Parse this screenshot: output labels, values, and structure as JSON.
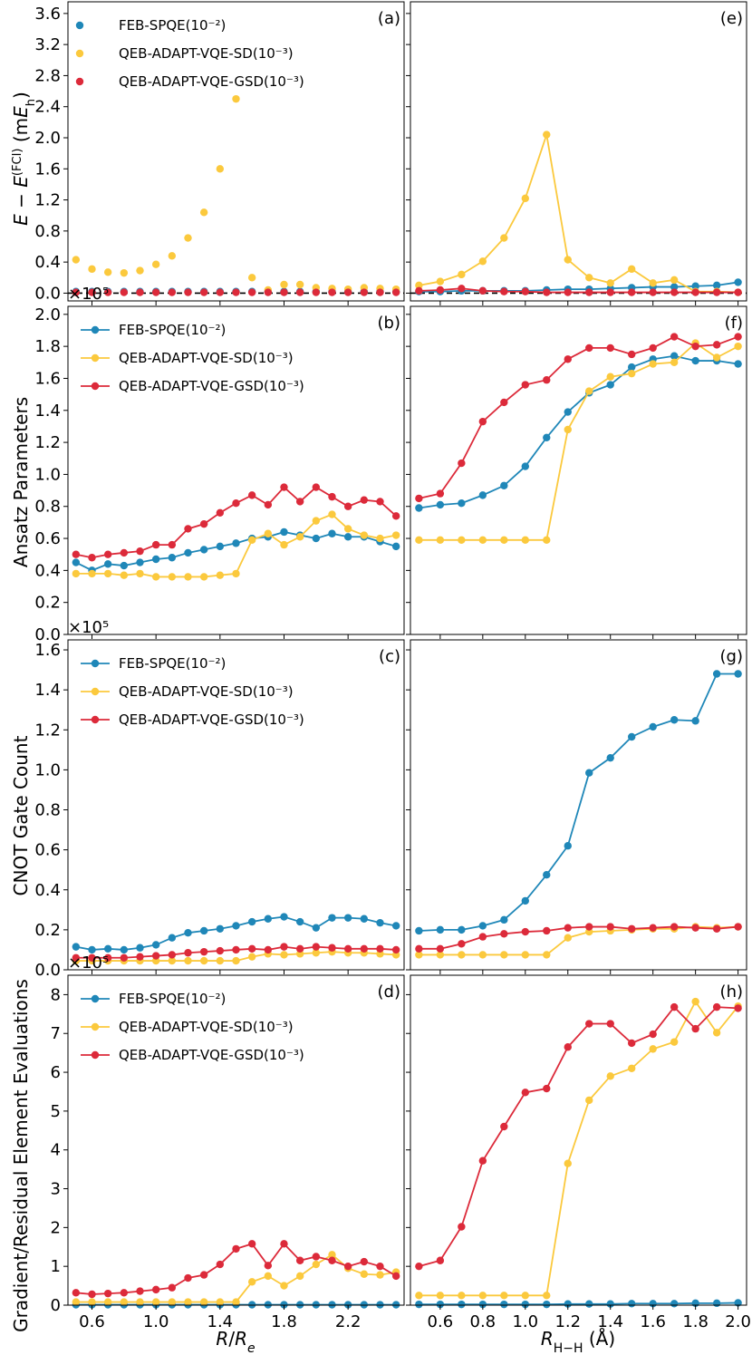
{
  "colors": {
    "blue": "#1f87b8",
    "yellow": "#fbc93d",
    "red": "#dc2a3a",
    "refline": "#000000"
  },
  "axis_labels": {
    "x_left": "R/R_e",
    "x_right": "R_H−H (Å)",
    "y_a": "E − E^(FCI) (mE_h)",
    "y_b": "Ansatz Parameters",
    "y_c": "CNOT Gate Count",
    "y_d": "Gradient/Residual Element Evaluations"
  },
  "chart_data": [
    {
      "id": "a",
      "type": "line",
      "panel_label": "(a)",
      "lines": false,
      "zero_line": true,
      "legend": true,
      "x": [
        0.5,
        0.6,
        0.7,
        0.8,
        0.9,
        1.0,
        1.1,
        1.2,
        1.3,
        1.4,
        1.5,
        1.6,
        1.7,
        1.8,
        1.9,
        2.0,
        2.1,
        2.2,
        2.3,
        2.4,
        2.5
      ],
      "xlim": [
        0.45,
        2.55
      ],
      "ylim": [
        -0.1,
        3.75
      ],
      "yticks": [
        0.0,
        0.4,
        0.8,
        1.2,
        1.6,
        2.0,
        2.4,
        2.8,
        3.2,
        3.6
      ],
      "ytick_labels": [
        "0.0",
        "0.4",
        "0.8",
        "1.2",
        "1.6",
        "2.0",
        "2.4",
        "2.8",
        "3.2",
        "3.6"
      ],
      "xticks": [
        0.6,
        1.0,
        1.4,
        1.8,
        2.2
      ],
      "xtick_labels": [],
      "series": [
        {
          "name": "FEB-SPQE(10⁻²)",
          "color": "#1f87b8",
          "values": [
            0.02,
            0.02,
            0.02,
            0.02,
            0.02,
            0.02,
            0.02,
            0.02,
            0.02,
            0.02,
            0.02,
            0.02,
            0.02,
            0.02,
            0.02,
            0.02,
            0.02,
            0.02,
            0.02,
            0.02,
            0.02
          ]
        },
        {
          "name": "QEB-ADAPT-VQE-SD(10⁻³)",
          "color": "#fbc93d",
          "values": [
            0.43,
            0.31,
            0.27,
            0.26,
            0.29,
            0.37,
            0.48,
            0.71,
            1.04,
            1.6,
            2.5,
            0.2,
            0.04,
            0.11,
            0.11,
            0.07,
            0.06,
            0.05,
            0.07,
            0.06,
            0.05
          ]
        },
        {
          "name": "QEB-ADAPT-VQE-GSD(10⁻³)",
          "color": "#dc2a3a",
          "values": [
            0.01,
            0.01,
            0.01,
            0.01,
            0.01,
            0.01,
            0.01,
            0.01,
            0.01,
            0.01,
            0.01,
            0.01,
            0.01,
            0.01,
            0.01,
            0.01,
            0.01,
            0.01,
            0.01,
            0.01,
            0.01
          ]
        }
      ]
    },
    {
      "id": "e",
      "type": "line",
      "panel_label": "(e)",
      "lines": true,
      "zero_line": true,
      "legend": false,
      "x": [
        0.5,
        0.6,
        0.7,
        0.8,
        0.9,
        1.0,
        1.1,
        1.2,
        1.3,
        1.4,
        1.5,
        1.6,
        1.7,
        1.8,
        1.9,
        2.0
      ],
      "xlim": [
        0.46,
        2.04
      ],
      "ylim": [
        -0.1,
        3.75
      ],
      "yticks": [
        0.0,
        0.4,
        0.8,
        1.2,
        1.6,
        2.0,
        2.4,
        2.8,
        3.2,
        3.6
      ],
      "ytick_labels": [],
      "xticks": [
        0.6,
        0.8,
        1.0,
        1.2,
        1.4,
        1.6,
        1.8,
        2.0
      ],
      "xtick_labels": [],
      "series": [
        {
          "name": "FEB-SPQE(10⁻²)",
          "color": "#1f87b8",
          "values": [
            0.02,
            0.02,
            0.03,
            0.03,
            0.03,
            0.03,
            0.04,
            0.05,
            0.05,
            0.06,
            0.07,
            0.08,
            0.08,
            0.09,
            0.1,
            0.14
          ]
        },
        {
          "name": "QEB-ADAPT-VQE-SD(10⁻³)",
          "color": "#fbc93d",
          "values": [
            0.1,
            0.15,
            0.24,
            0.41,
            0.71,
            1.22,
            2.04,
            0.43,
            0.2,
            0.13,
            0.31,
            0.13,
            0.17,
            0.02,
            0.02,
            0.01
          ]
        },
        {
          "name": "QEB-ADAPT-VQE-GSD(10⁻³)",
          "color": "#dc2a3a",
          "values": [
            0.03,
            0.04,
            0.06,
            0.03,
            0.02,
            0.02,
            0.01,
            0.01,
            0.01,
            0.01,
            0.01,
            0.01,
            0.01,
            0.01,
            0.01,
            0.01
          ]
        }
      ]
    },
    {
      "id": "b",
      "type": "line",
      "panel_label": "(b)",
      "lines": true,
      "zero_line": false,
      "legend": true,
      "multiplier": "×10⁵",
      "x": [
        0.5,
        0.6,
        0.7,
        0.8,
        0.9,
        1.0,
        1.1,
        1.2,
        1.3,
        1.4,
        1.5,
        1.6,
        1.7,
        1.8,
        1.9,
        2.0,
        2.1,
        2.2,
        2.3,
        2.4,
        2.5
      ],
      "xlim": [
        0.45,
        2.55
      ],
      "ylim": [
        0.0,
        2.05
      ],
      "yticks": [
        0.0,
        0.2,
        0.4,
        0.6,
        0.8,
        1.0,
        1.2,
        1.4,
        1.6,
        1.8,
        2.0
      ],
      "ytick_labels": [
        "0.0",
        "0.2",
        "0.4",
        "0.6",
        "0.8",
        "1.0",
        "1.2",
        "1.4",
        "1.6",
        "1.8",
        "2.0"
      ],
      "xticks": [
        0.6,
        1.0,
        1.4,
        1.8,
        2.2
      ],
      "xtick_labels": [],
      "series": [
        {
          "name": "FEB-SPQE(10⁻²)",
          "color": "#1f87b8",
          "values": [
            0.45,
            0.4,
            0.44,
            0.43,
            0.45,
            0.47,
            0.48,
            0.51,
            0.53,
            0.55,
            0.57,
            0.6,
            0.61,
            0.64,
            0.62,
            0.6,
            0.63,
            0.61,
            0.61,
            0.58,
            0.55
          ]
        },
        {
          "name": "QEB-ADAPT-VQE-SD(10⁻³)",
          "color": "#fbc93d",
          "values": [
            0.38,
            0.38,
            0.38,
            0.37,
            0.38,
            0.36,
            0.36,
            0.36,
            0.36,
            0.37,
            0.38,
            0.59,
            0.63,
            0.56,
            0.61,
            0.71,
            0.75,
            0.66,
            0.62,
            0.6,
            0.62
          ]
        },
        {
          "name": "QEB-ADAPT-VQE-GSD(10⁻³)",
          "color": "#dc2a3a",
          "values": [
            0.5,
            0.48,
            0.5,
            0.51,
            0.52,
            0.56,
            0.56,
            0.66,
            0.69,
            0.76,
            0.82,
            0.87,
            0.81,
            0.92,
            0.83,
            0.92,
            0.86,
            0.8,
            0.84,
            0.83,
            0.74
          ]
        }
      ]
    },
    {
      "id": "f",
      "type": "line",
      "panel_label": "(f)",
      "lines": true,
      "zero_line": false,
      "legend": false,
      "x": [
        0.5,
        0.6,
        0.7,
        0.8,
        0.9,
        1.0,
        1.1,
        1.2,
        1.3,
        1.4,
        1.5,
        1.6,
        1.7,
        1.8,
        1.9,
        2.0
      ],
      "xlim": [
        0.46,
        2.04
      ],
      "ylim": [
        0.0,
        2.05
      ],
      "yticks": [
        0.0,
        0.2,
        0.4,
        0.6,
        0.8,
        1.0,
        1.2,
        1.4,
        1.6,
        1.8,
        2.0
      ],
      "ytick_labels": [],
      "xticks": [
        0.6,
        0.8,
        1.0,
        1.2,
        1.4,
        1.6,
        1.8,
        2.0
      ],
      "xtick_labels": [],
      "series": [
        {
          "name": "FEB-SPQE(10⁻²)",
          "color": "#1f87b8",
          "values": [
            0.79,
            0.81,
            0.82,
            0.87,
            0.93,
            1.05,
            1.23,
            1.39,
            1.51,
            1.56,
            1.67,
            1.72,
            1.74,
            1.71,
            1.71,
            1.69
          ]
        },
        {
          "name": "QEB-ADAPT-VQE-SD(10⁻³)",
          "color": "#fbc93d",
          "values": [
            0.59,
            0.59,
            0.59,
            0.59,
            0.59,
            0.59,
            0.59,
            1.28,
            1.52,
            1.61,
            1.63,
            1.69,
            1.7,
            1.82,
            1.73,
            1.8
          ]
        },
        {
          "name": "QEB-ADAPT-VQE-GSD(10⁻³)",
          "color": "#dc2a3a",
          "values": [
            0.85,
            0.88,
            1.07,
            1.33,
            1.45,
            1.56,
            1.59,
            1.72,
            1.79,
            1.79,
            1.75,
            1.79,
            1.86,
            1.8,
            1.81,
            1.86
          ]
        }
      ]
    },
    {
      "id": "c",
      "type": "line",
      "panel_label": "(c)",
      "lines": true,
      "zero_line": false,
      "legend": true,
      "multiplier": "×10⁵",
      "x": [
        0.5,
        0.6,
        0.7,
        0.8,
        0.9,
        1.0,
        1.1,
        1.2,
        1.3,
        1.4,
        1.5,
        1.6,
        1.7,
        1.8,
        1.9,
        2.0,
        2.1,
        2.2,
        2.3,
        2.4,
        2.5
      ],
      "xlim": [
        0.45,
        2.55
      ],
      "ylim": [
        0.0,
        1.65
      ],
      "yticks": [
        0.0,
        0.2,
        0.4,
        0.6,
        0.8,
        1.0,
        1.2,
        1.4,
        1.6
      ],
      "ytick_labels": [
        "0.0",
        "0.2",
        "0.4",
        "0.6",
        "0.8",
        "1.0",
        "1.2",
        "1.4",
        "1.6"
      ],
      "xticks": [
        0.6,
        1.0,
        1.4,
        1.8,
        2.2
      ],
      "xtick_labels": [],
      "series": [
        {
          "name": "FEB-SPQE(10⁻²)",
          "color": "#1f87b8",
          "values": [
            0.115,
            0.1,
            0.105,
            0.1,
            0.11,
            0.125,
            0.16,
            0.185,
            0.195,
            0.205,
            0.22,
            0.24,
            0.255,
            0.265,
            0.24,
            0.21,
            0.26,
            0.26,
            0.255,
            0.235,
            0.22
          ]
        },
        {
          "name": "QEB-ADAPT-VQE-SD(10⁻³)",
          "color": "#fbc93d",
          "values": [
            0.045,
            0.045,
            0.045,
            0.045,
            0.045,
            0.045,
            0.045,
            0.045,
            0.045,
            0.045,
            0.045,
            0.065,
            0.08,
            0.075,
            0.08,
            0.085,
            0.09,
            0.085,
            0.085,
            0.08,
            0.075
          ]
        },
        {
          "name": "QEB-ADAPT-VQE-GSD(10⁻³)",
          "color": "#dc2a3a",
          "values": [
            0.06,
            0.06,
            0.06,
            0.06,
            0.065,
            0.07,
            0.075,
            0.085,
            0.09,
            0.095,
            0.1,
            0.105,
            0.1,
            0.115,
            0.105,
            0.115,
            0.11,
            0.105,
            0.105,
            0.105,
            0.1
          ]
        }
      ]
    },
    {
      "id": "g",
      "type": "line",
      "panel_label": "(g)",
      "lines": true,
      "zero_line": false,
      "legend": false,
      "x": [
        0.5,
        0.6,
        0.7,
        0.8,
        0.9,
        1.0,
        1.1,
        1.2,
        1.3,
        1.4,
        1.5,
        1.6,
        1.7,
        1.8,
        1.9,
        2.0
      ],
      "xlim": [
        0.46,
        2.04
      ],
      "ylim": [
        0.0,
        1.65
      ],
      "yticks": [
        0.0,
        0.2,
        0.4,
        0.6,
        0.8,
        1.0,
        1.2,
        1.4,
        1.6
      ],
      "ytick_labels": [],
      "xticks": [
        0.6,
        0.8,
        1.0,
        1.2,
        1.4,
        1.6,
        1.8,
        2.0
      ],
      "xtick_labels": [],
      "series": [
        {
          "name": "FEB-SPQE(10⁻²)",
          "color": "#1f87b8",
          "values": [
            0.195,
            0.2,
            0.2,
            0.22,
            0.25,
            0.345,
            0.475,
            0.62,
            0.985,
            1.06,
            1.165,
            1.215,
            1.25,
            1.245,
            1.48,
            1.48
          ]
        },
        {
          "name": "QEB-ADAPT-VQE-SD(10⁻³)",
          "color": "#fbc93d",
          "values": [
            0.075,
            0.075,
            0.075,
            0.075,
            0.075,
            0.075,
            0.075,
            0.16,
            0.19,
            0.195,
            0.2,
            0.205,
            0.205,
            0.215,
            0.21,
            0.215
          ]
        },
        {
          "name": "QEB-ADAPT-VQE-GSD(10⁻³)",
          "color": "#dc2a3a",
          "values": [
            0.105,
            0.105,
            0.13,
            0.165,
            0.18,
            0.19,
            0.195,
            0.21,
            0.215,
            0.215,
            0.205,
            0.21,
            0.215,
            0.21,
            0.205,
            0.215
          ]
        }
      ]
    },
    {
      "id": "d",
      "type": "line",
      "panel_label": "(d)",
      "lines": true,
      "zero_line": false,
      "legend": true,
      "multiplier": "×10⁵",
      "x": [
        0.5,
        0.6,
        0.7,
        0.8,
        0.9,
        1.0,
        1.1,
        1.2,
        1.3,
        1.4,
        1.5,
        1.6,
        1.7,
        1.8,
        1.9,
        2.0,
        2.1,
        2.2,
        2.3,
        2.4,
        2.5
      ],
      "xlim": [
        0.45,
        2.55
      ],
      "ylim": [
        0.0,
        8.5
      ],
      "yticks": [
        0,
        1,
        2,
        3,
        4,
        5,
        6,
        7,
        8
      ],
      "ytick_labels": [
        "0",
        "1",
        "2",
        "3",
        "4",
        "5",
        "6",
        "7",
        "8"
      ],
      "xticks": [
        0.6,
        1.0,
        1.4,
        1.8,
        2.2
      ],
      "xtick_labels": [
        "0.6",
        "1.0",
        "1.4",
        "1.8",
        "2.2"
      ],
      "series": [
        {
          "name": "FEB-SPQE(10⁻²)",
          "color": "#1f87b8",
          "values": [
            0.01,
            0.01,
            0.01,
            0.01,
            0.01,
            0.01,
            0.01,
            0.01,
            0.01,
            0.01,
            0.01,
            0.01,
            0.01,
            0.01,
            0.01,
            0.01,
            0.01,
            0.01,
            0.01,
            0.01,
            0.01
          ]
        },
        {
          "name": "QEB-ADAPT-VQE-SD(10⁻³)",
          "color": "#fbc93d",
          "values": [
            0.08,
            0.08,
            0.08,
            0.08,
            0.08,
            0.08,
            0.08,
            0.08,
            0.08,
            0.08,
            0.08,
            0.6,
            0.75,
            0.5,
            0.75,
            1.05,
            1.3,
            0.95,
            0.8,
            0.78,
            0.85
          ]
        },
        {
          "name": "QEB-ADAPT-VQE-GSD(10⁻³)",
          "color": "#dc2a3a",
          "values": [
            0.32,
            0.28,
            0.3,
            0.32,
            0.36,
            0.4,
            0.45,
            0.7,
            0.78,
            1.05,
            1.45,
            1.58,
            1.02,
            1.58,
            1.15,
            1.25,
            1.15,
            1.0,
            1.12,
            1.0,
            0.75
          ]
        }
      ]
    },
    {
      "id": "h",
      "type": "line",
      "panel_label": "(h)",
      "lines": true,
      "zero_line": false,
      "legend": false,
      "x": [
        0.5,
        0.6,
        0.7,
        0.8,
        0.9,
        1.0,
        1.1,
        1.2,
        1.3,
        1.4,
        1.5,
        1.6,
        1.7,
        1.8,
        1.9,
        2.0
      ],
      "xlim": [
        0.46,
        2.04
      ],
      "ylim": [
        0.0,
        8.5
      ],
      "yticks": [
        0,
        1,
        2,
        3,
        4,
        5,
        6,
        7,
        8
      ],
      "ytick_labels": [],
      "xticks": [
        0.6,
        0.8,
        1.0,
        1.2,
        1.4,
        1.6,
        1.8,
        2.0
      ],
      "xtick_labels": [
        "0.6",
        "0.8",
        "1.0",
        "1.2",
        "1.4",
        "1.6",
        "1.8",
        "2.0"
      ],
      "series": [
        {
          "name": "FEB-SPQE(10⁻²)",
          "color": "#1f87b8",
          "values": [
            0.02,
            0.02,
            0.02,
            0.02,
            0.02,
            0.02,
            0.02,
            0.03,
            0.03,
            0.03,
            0.04,
            0.04,
            0.04,
            0.05,
            0.05,
            0.06
          ]
        },
        {
          "name": "QEB-ADAPT-VQE-SD(10⁻³)",
          "color": "#fbc93d",
          "values": [
            0.25,
            0.25,
            0.25,
            0.25,
            0.25,
            0.25,
            0.25,
            3.65,
            5.28,
            5.9,
            6.1,
            6.6,
            6.78,
            7.82,
            7.02,
            7.7
          ]
        },
        {
          "name": "QEB-ADAPT-VQE-GSD(10⁻³)",
          "color": "#dc2a3a",
          "values": [
            1.0,
            1.15,
            2.02,
            3.72,
            4.6,
            5.48,
            5.58,
            6.65,
            7.25,
            7.25,
            6.75,
            6.98,
            7.68,
            7.12,
            7.68,
            7.65
          ]
        }
      ]
    }
  ]
}
